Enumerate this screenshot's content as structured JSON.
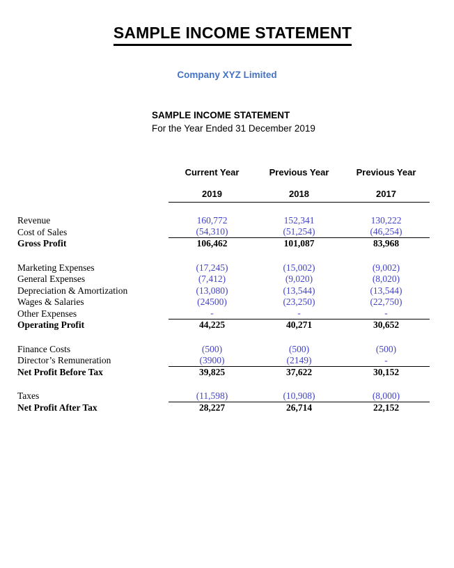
{
  "page": {
    "title": "SAMPLE INCOME STATEMENT",
    "company": "Company XYZ Limited",
    "statement_title": "SAMPLE INCOME STATEMENT",
    "statement_period": "For the Year Ended 31 December 2019"
  },
  "colors": {
    "company_blue": "#4472C4",
    "figure_blue": "#4343C6",
    "text_black": "#000000",
    "page_background": "#FFFFFF"
  },
  "table": {
    "columns": [
      {
        "title": "Current Year",
        "year": "2019"
      },
      {
        "title": "Previous Year",
        "year": "2018"
      },
      {
        "title": "Previous Year",
        "year": "2017"
      }
    ],
    "rows": [
      {
        "label": "Revenue",
        "values": [
          "160,772",
          "152,341",
          "130,222"
        ],
        "style": "normal",
        "rule_below": false,
        "section_break": false
      },
      {
        "label": "Cost of Sales",
        "values": [
          "(54,310)",
          "(51,254)",
          "(46,254)"
        ],
        "style": "normal",
        "rule_below": true,
        "section_break": false
      },
      {
        "label": "Gross Profit",
        "values": [
          "106,462",
          "101,087",
          "83,968"
        ],
        "style": "total",
        "rule_below": false,
        "section_break": false
      },
      {
        "label": "Marketing Expenses",
        "values": [
          "(17,245)",
          "(15,002)",
          "(9,002)"
        ],
        "style": "normal",
        "rule_below": false,
        "section_break": true
      },
      {
        "label": "General Expenses",
        "values": [
          "(7,412)",
          "(9,020)",
          "(8,020)"
        ],
        "style": "normal",
        "rule_below": false,
        "section_break": false
      },
      {
        "label": "Depreciation & Amortization",
        "values": [
          "(13,080)",
          "(13,544)",
          "(13,544)"
        ],
        "style": "normal",
        "rule_below": false,
        "section_break": false
      },
      {
        "label": "Wages & Salaries",
        "values": [
          "(24500)",
          "(23,250)",
          "(22,750)"
        ],
        "style": "normal",
        "rule_below": false,
        "section_break": false
      },
      {
        "label": "Other Expenses",
        "values": [
          "-",
          "-",
          "-"
        ],
        "style": "normal",
        "rule_below": true,
        "section_break": false
      },
      {
        "label": "Operating Profit",
        "values": [
          "44,225",
          "40,271",
          "30,652"
        ],
        "style": "total",
        "rule_below": false,
        "section_break": false
      },
      {
        "label": "Finance Costs",
        "values": [
          "(500)",
          "(500)",
          "(500)"
        ],
        "style": "normal",
        "rule_below": false,
        "section_break": true
      },
      {
        "label": "Director’s Remuneration",
        "values": [
          "(3900)",
          "(2149)",
          "-"
        ],
        "style": "normal",
        "rule_below": true,
        "section_break": false
      },
      {
        "label": "Net Profit Before Tax",
        "values": [
          "39,825",
          "37,622",
          "30,152"
        ],
        "style": "total",
        "rule_below": false,
        "section_break": false
      },
      {
        "label": "Taxes",
        "values": [
          "(11,598)",
          "(10,908)",
          "(8,000)"
        ],
        "style": "normal",
        "rule_below": true,
        "section_break": true
      },
      {
        "label": "Net Profit After Tax",
        "values": [
          "28,227",
          "26,714",
          "22,152"
        ],
        "style": "total",
        "rule_below": false,
        "section_break": false
      }
    ]
  }
}
